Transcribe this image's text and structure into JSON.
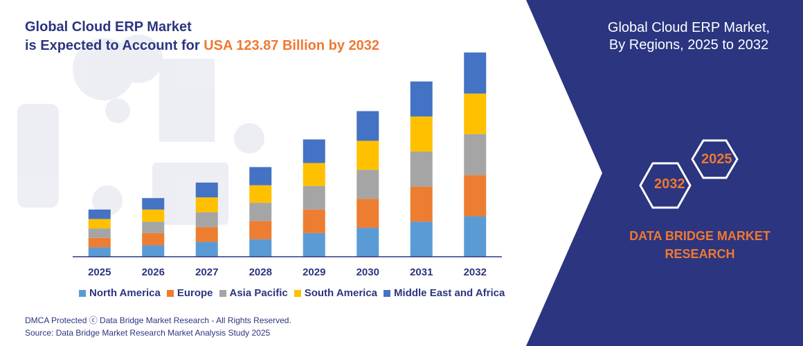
{
  "headline": {
    "line1": "Global Cloud ERP Market",
    "line2_prefix": "is Expected to Account for",
    "line2_highlight": "USA 123.87 Billion by 2032"
  },
  "chart_data": {
    "type": "bar",
    "stacked": true,
    "title": "Global Cloud ERP Market is Expected to Account for USA 123.87 Billion by 2032",
    "xlabel": "",
    "ylabel": "",
    "categories": [
      "2025",
      "2026",
      "2027",
      "2028",
      "2029",
      "2030",
      "2031",
      "2032"
    ],
    "series": [
      {
        "name": "North America",
        "color": "#5b9bd5",
        "values": [
          14,
          17,
          22,
          26,
          35,
          43,
          52,
          60
        ]
      },
      {
        "name": "Europe",
        "color": "#ed7d31",
        "values": [
          14,
          18,
          22,
          27,
          35,
          43,
          52,
          61
        ]
      },
      {
        "name": "Asia Pacific",
        "color": "#a5a5a5",
        "values": [
          14,
          17,
          22,
          27,
          35,
          43,
          52,
          61
        ]
      },
      {
        "name": "South America",
        "color": "#ffc000",
        "values": [
          14,
          18,
          22,
          26,
          34,
          43,
          52,
          60
        ]
      },
      {
        "name": "Middle East and Africa",
        "color": "#4472c4",
        "values": [
          14,
          17,
          22,
          27,
          35,
          44,
          52,
          61
        ]
      }
    ],
    "ylim": [
      0,
      310
    ],
    "grid": false,
    "legend_position": "bottom"
  },
  "footer": {
    "line1": "DMCA Protected ⓒ Data Bridge Market Research - All Rights Reserved.",
    "line2": "Source: Data Bridge Market Research Market Analysis Study 2025"
  },
  "right_panel": {
    "title_line1": "Global Cloud ERP Market,",
    "title_line2": "By Regions, 2025 to 2032",
    "hex_year_start": "2025",
    "hex_year_end": "2032",
    "brand_line1": "DATA BRIDGE MARKET",
    "brand_line2": "RESEARCH",
    "bg_color": "#2b3580",
    "accent_color": "#f07830"
  }
}
